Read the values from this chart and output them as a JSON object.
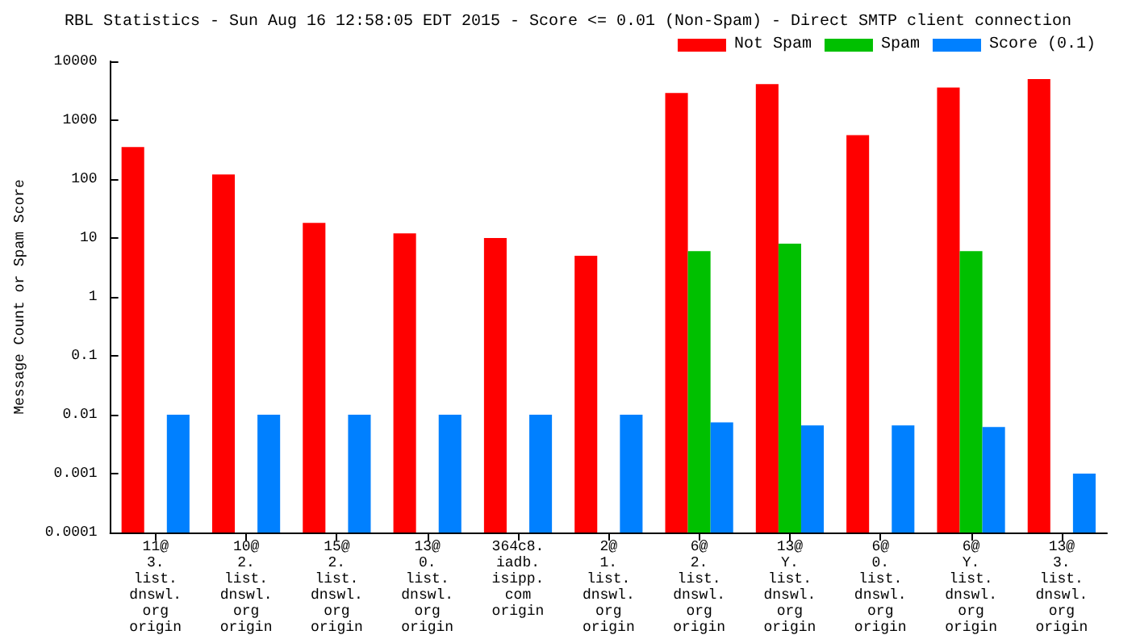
{
  "chart_data": {
    "type": "bar",
    "title": "RBL Statistics - Sun Aug 16 12:58:05 EDT 2015 - Score <= 0.01 (Non-Spam) - Direct SMTP client connection",
    "ylabel": "Message Count or Spam Score",
    "categories": [
      "11@\n3.\nlist.\ndnswl.\norg\norigin",
      "10@\n2.\nlist.\ndnswl.\norg\norigin",
      "15@\n2.\nlist.\ndnswl.\norg\norigin",
      "13@\n0.\nlist.\ndnswl.\norg\norigin",
      "364c8.\niadb.\nisipp.\ncom\norigin",
      "2@\n1.\nlist.\ndnswl.\norg\norigin",
      "6@\n2.\nlist.\ndnswl.\norg\norigin",
      "13@\nY.\nlist.\ndnswl.\norg\norigin",
      "6@\n0.\nlist.\ndnswl.\norg\norigin",
      "6@\nY.\nlist.\ndnswl.\norg\norigin",
      "13@\n3.\nlist.\ndnswl.\norg\norigin"
    ],
    "series": [
      {
        "name": "Not Spam",
        "color": "#ff0000",
        "values": [
          350,
          120,
          18,
          12,
          10,
          5,
          2900,
          4100,
          560,
          3600,
          5000
        ]
      },
      {
        "name": "Spam",
        "color": "#00c000",
        "values": [
          null,
          null,
          null,
          null,
          null,
          null,
          6,
          8,
          null,
          6,
          null
        ]
      },
      {
        "name": "Score (0.1)",
        "color": "#0080ff",
        "values": [
          0.01,
          0.01,
          0.01,
          0.01,
          0.01,
          0.01,
          0.0074,
          0.0066,
          0.0066,
          0.0062,
          0.001
        ]
      }
    ],
    "log": "y",
    "ylim": [
      0.0001,
      10000
    ],
    "yticks": [
      0.0001,
      0.001,
      0.01,
      0.1,
      1,
      10,
      100,
      1000,
      10000
    ],
    "grid": false,
    "legend": "top right"
  }
}
